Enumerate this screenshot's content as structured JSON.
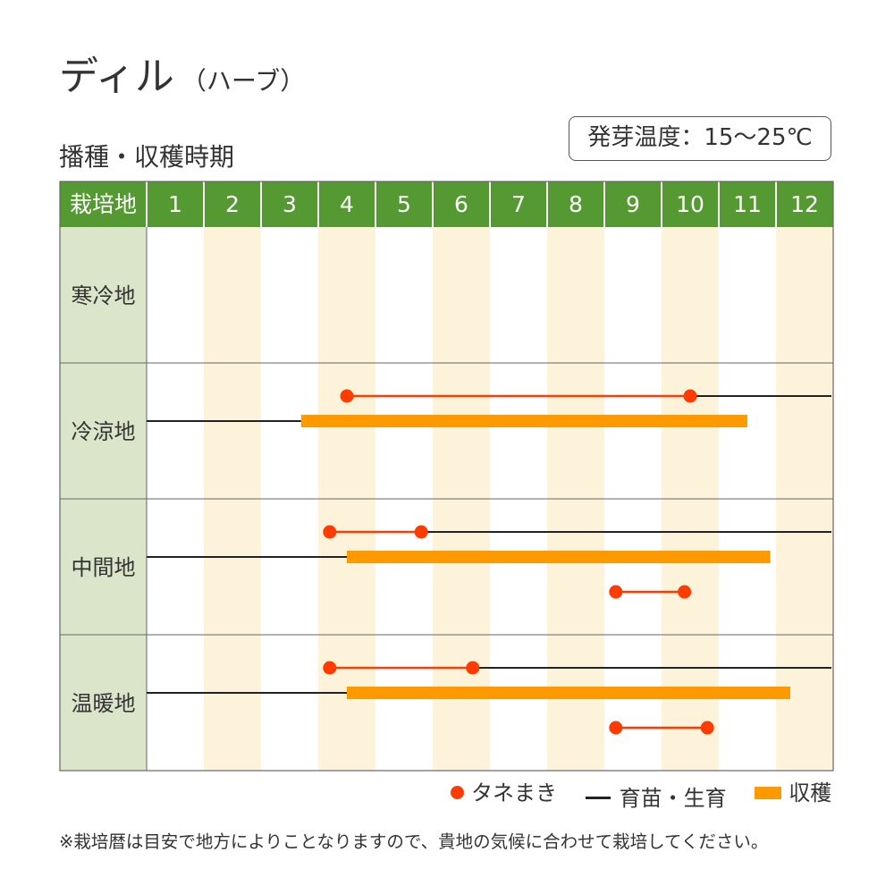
{
  "title": "ディル",
  "title_sub": "（ハーブ）",
  "germination_temp": "発芽温度：15〜25℃",
  "subtitle": "播種・収穫時期",
  "header_label": "栽培地",
  "months": [
    "1",
    "2",
    "3",
    "4",
    "5",
    "6",
    "7",
    "8",
    "9",
    "10",
    "11",
    "12"
  ],
  "colors": {
    "header_green": "#559932",
    "region_bg": "#dbe5ca",
    "stripe": "#fcf3da",
    "sowing": "#ff3b00",
    "growing": "#222222",
    "harvest": "#ff9900",
    "grid": "#666666"
  },
  "legend": {
    "sowing": "タネまき",
    "growing": "育苗・生育",
    "harvest": "収穫"
  },
  "note": "※栽培暦は目安で地方によりことなりますので、貴地の気候に合わせて栽培してください。",
  "chart_data": {
    "type": "table",
    "x_unit": "month",
    "regions": [
      {
        "name": "寒冷地",
        "sowing": [],
        "growing": [],
        "harvest": []
      },
      {
        "name": "冷涼地",
        "sowing": [
          [
            4.5,
            10.5
          ]
        ],
        "growing": [
          [
            10.5,
            13.0
          ],
          [
            1.0,
            3.7
          ]
        ],
        "harvest": [
          [
            3.7,
            11.5
          ]
        ]
      },
      {
        "name": "中間地",
        "sowing": [
          [
            4.2,
            5.8
          ],
          [
            9.2,
            10.4
          ]
        ],
        "growing": [
          [
            5.8,
            13.0
          ],
          [
            1.0,
            4.5
          ]
        ],
        "harvest": [
          [
            4.5,
            11.9
          ]
        ]
      },
      {
        "name": "温暖地",
        "sowing": [
          [
            4.2,
            6.7
          ],
          [
            9.2,
            10.8
          ]
        ],
        "growing": [
          [
            6.7,
            13.0
          ],
          [
            1.0,
            4.5
          ]
        ],
        "harvest": [
          [
            4.5,
            12.25
          ]
        ]
      }
    ]
  }
}
